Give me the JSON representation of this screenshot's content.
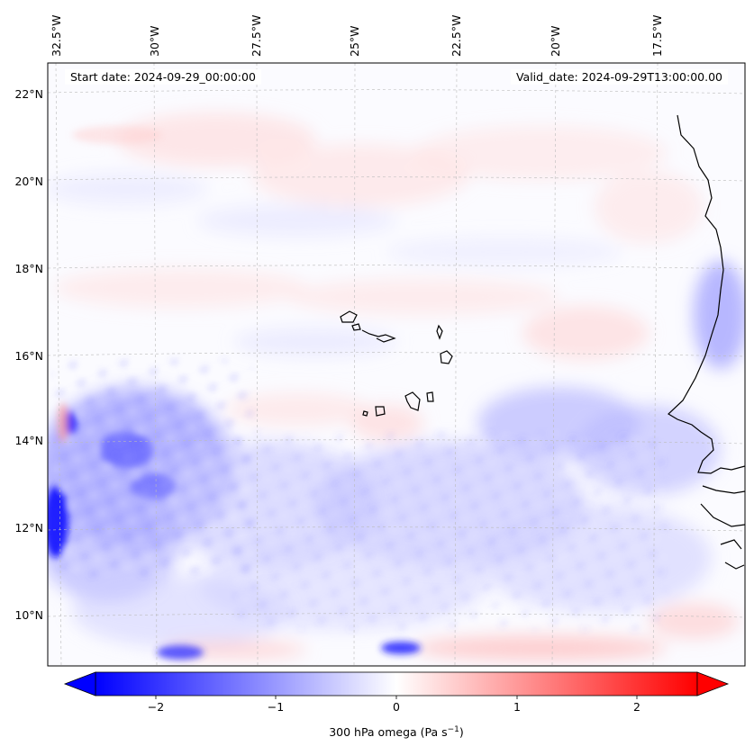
{
  "map": {
    "start_date": "Start date: 2024-09-29_00:00:00",
    "valid_date": "Valid_date: 2024-09-29T13:00:00.00",
    "lon_labels": [
      "32.5°W",
      "30°W",
      "27.5°W",
      "25°W",
      "22.5°W",
      "20°W",
      "17.5°W"
    ],
    "lat_labels": [
      "22°N",
      "20°N",
      "18°N",
      "16°N",
      "14°N",
      "12°N",
      "10°N"
    ]
  },
  "colorbar": {
    "title": "300 hPa omega (Pa s",
    "title_exp": "−1",
    "title_close": ")",
    "ticks": [
      "−2",
      "−1",
      "0",
      "1",
      "2"
    ],
    "vmin": -2.5,
    "vmax": 2.5,
    "min_color": "#0000ff",
    "mid_color": "#ffffff",
    "max_color": "#ff0000"
  },
  "colors": {
    "coast": "#000000",
    "grid": "#bbbbbb"
  }
}
